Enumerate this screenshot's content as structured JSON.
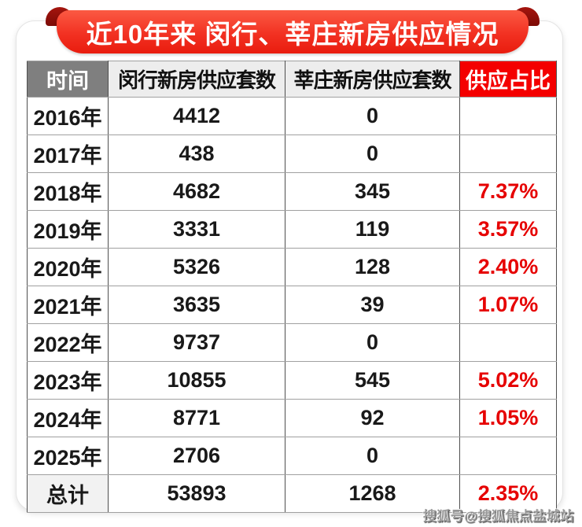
{
  "banner": {
    "title": "近10年来 闵行、莘庄新房供应情况",
    "bg_gradient_top": "#fb5a43",
    "bg_gradient_bottom": "#e91c0e",
    "curl_color": "#8c0f08",
    "text_color": "#ffffff"
  },
  "table": {
    "headers": {
      "time": "时间",
      "minhang": "闵行新房供应套数",
      "xinzhuang": "莘庄新房供应套数",
      "ratio": "供应占比"
    },
    "header_colors": {
      "time_bg": "#7f7f7f",
      "supply_bg": "#ededed",
      "ratio_bg": "#f40000"
    },
    "ratio_text_color": "#e60000",
    "rows": [
      {
        "time": "2016年",
        "minhang": "4412",
        "xinzhuang": "0",
        "ratio": "",
        "is_total": false
      },
      {
        "time": "2017年",
        "minhang": "438",
        "xinzhuang": "0",
        "ratio": "",
        "is_total": false
      },
      {
        "time": "2018年",
        "minhang": "4682",
        "xinzhuang": "345",
        "ratio": "7.37%",
        "is_total": false
      },
      {
        "time": "2019年",
        "minhang": "3331",
        "xinzhuang": "119",
        "ratio": "3.57%",
        "is_total": false
      },
      {
        "time": "2020年",
        "minhang": "5326",
        "xinzhuang": "128",
        "ratio": "2.40%",
        "is_total": false
      },
      {
        "time": "2021年",
        "minhang": "3635",
        "xinzhuang": "39",
        "ratio": "1.07%",
        "is_total": false
      },
      {
        "time": "2022年",
        "minhang": "9737",
        "xinzhuang": "0",
        "ratio": "",
        "is_total": false
      },
      {
        "time": "2023年",
        "minhang": "10855",
        "xinzhuang": "545",
        "ratio": "5.02%",
        "is_total": false
      },
      {
        "time": "2024年",
        "minhang": "8771",
        "xinzhuang": "92",
        "ratio": "1.05%",
        "is_total": false
      },
      {
        "time": "2025年",
        "minhang": "2706",
        "xinzhuang": "0",
        "ratio": "",
        "is_total": false
      },
      {
        "time": "总计",
        "minhang": "53893",
        "xinzhuang": "1268",
        "ratio": "2.35%",
        "is_total": true
      }
    ]
  },
  "watermark": "搜狐号@搜狐焦点盐城站",
  "chart_data": {
    "type": "table",
    "title": "近10年来 闵行、莘庄新房供应情况",
    "columns": [
      "时间",
      "闵行新房供应套数",
      "莘庄新房供应套数",
      "供应占比"
    ],
    "categories": [
      "2016年",
      "2017年",
      "2018年",
      "2019年",
      "2020年",
      "2021年",
      "2022年",
      "2023年",
      "2024年",
      "2025年",
      "总计"
    ],
    "series": [
      {
        "name": "闵行新房供应套数",
        "values": [
          4412,
          438,
          4682,
          3331,
          5326,
          3635,
          9737,
          10855,
          8771,
          2706,
          53893
        ]
      },
      {
        "name": "莘庄新房供应套数",
        "values": [
          0,
          0,
          345,
          119,
          128,
          39,
          0,
          545,
          92,
          0,
          1268
        ]
      },
      {
        "name": "供应占比",
        "values": [
          "",
          "",
          "7.37%",
          "3.57%",
          "2.40%",
          "1.07%",
          "",
          "5.02%",
          "1.05%",
          "",
          "2.35%"
        ]
      }
    ]
  }
}
